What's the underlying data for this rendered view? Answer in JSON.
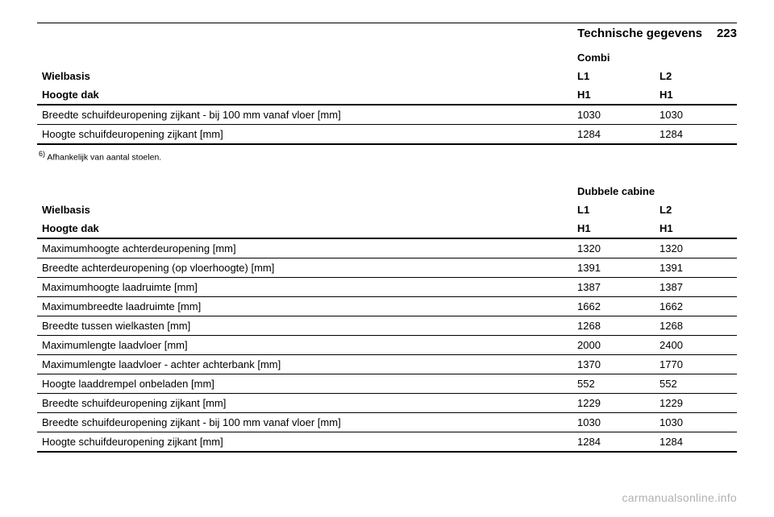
{
  "header": {
    "title": "Technische gegevens",
    "page": "223"
  },
  "table1": {
    "group_label": "Combi",
    "columns": [
      {
        "col_a": "L1",
        "col_b": "L2"
      },
      {
        "col_a": "H1",
        "col_b": "H1"
      }
    ],
    "row_labels_leading": [
      "Wielbasis",
      "Hoogte dak"
    ],
    "rows": [
      {
        "label": "Breedte schuifdeuropening zijkant - bij 100 mm vanaf vloer [mm]",
        "a": "1030",
        "b": "1030"
      },
      {
        "label": "Hoogte schuifdeuropening zijkant [mm]",
        "a": "1284",
        "b": "1284"
      }
    ]
  },
  "footnote": {
    "marker": "6)",
    "text": "Afhankelijk van aantal stoelen."
  },
  "table2": {
    "group_label": "Dubbele cabine",
    "columns": [
      {
        "col_a": "L1",
        "col_b": "L2"
      },
      {
        "col_a": "H1",
        "col_b": "H1"
      }
    ],
    "row_labels_leading": [
      "Wielbasis",
      "Hoogte dak"
    ],
    "rows": [
      {
        "label": "Maximumhoogte achterdeuropening [mm]",
        "a": "1320",
        "b": "1320"
      },
      {
        "label": "Breedte achterdeuropening (op vloerhoogte) [mm]",
        "a": "1391",
        "b": "1391"
      },
      {
        "label": "Maximumhoogte laadruimte [mm]",
        "a": "1387",
        "b": "1387"
      },
      {
        "label": "Maximumbreedte laadruimte [mm]",
        "a": "1662",
        "b": "1662"
      },
      {
        "label": "Breedte tussen wielkasten [mm]",
        "a": "1268",
        "b": "1268"
      },
      {
        "label": "Maximumlengte laadvloer [mm]",
        "a": "2000",
        "b": "2400"
      },
      {
        "label": "Maximumlengte laadvloer - achter achterbank [mm]",
        "a": "1370",
        "b": "1770"
      },
      {
        "label": "Hoogte laaddrempel onbeladen [mm]",
        "a": "552",
        "b": "552"
      },
      {
        "label": "Breedte schuifdeuropening zijkant [mm]",
        "a": "1229",
        "b": "1229"
      },
      {
        "label": "Breedte schuifdeuropening zijkant - bij 100 mm vanaf vloer [mm]",
        "a": "1030",
        "b": "1030"
      },
      {
        "label": "Hoogte schuifdeuropening zijkant [mm]",
        "a": "1284",
        "b": "1284"
      }
    ]
  },
  "watermark": "carmanualsonline.info"
}
